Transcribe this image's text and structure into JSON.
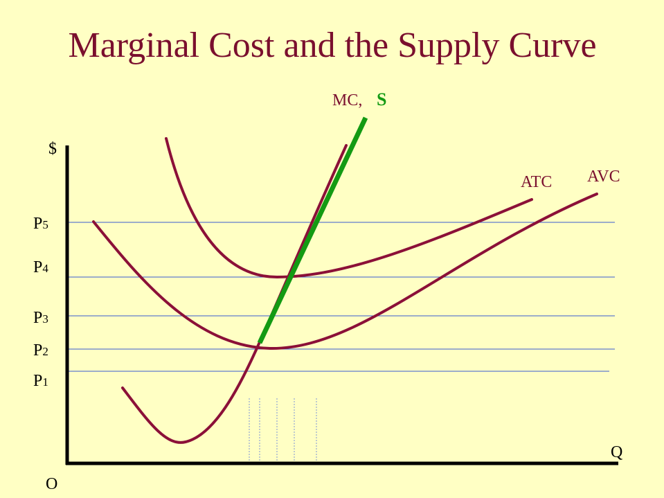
{
  "title": "Marginal Cost and the Supply Curve",
  "curve_labels": {
    "mc": "MC,",
    "supply": "S",
    "atc": "ATC",
    "avc": "AVC"
  },
  "axes": {
    "y_label": "$",
    "x_label": "Q",
    "origin": "O"
  },
  "price_levels": [
    {
      "letter": "P",
      "sub": "5"
    },
    {
      "letter": "P",
      "sub": "4"
    },
    {
      "letter": "P",
      "sub": "3"
    },
    {
      "letter": "P",
      "sub": "2"
    },
    {
      "letter": "P",
      "sub": "1"
    }
  ]
}
